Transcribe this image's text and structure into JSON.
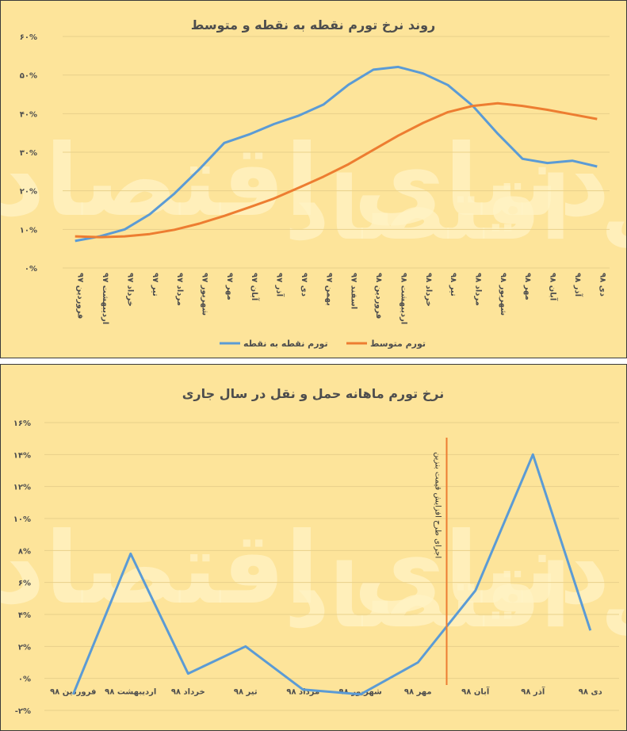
{
  "colors": {
    "spot": "#5b9bd5",
    "average": "#ed7d31",
    "transport": "#5b9bd5",
    "marker": "#ed7d31",
    "watermark": "#fff3c4"
  },
  "watermark": "دنیای اقتصاد",
  "chart_data": [
    {
      "type": "line",
      "title": "روند نرخ تورم نقطه به نقطه و متوسط",
      "categories": [
        "فروردین ۹۷",
        "اردیبهشت ۹۷",
        "خرداد ۹۷",
        "تیر ۹۷",
        "مرداد ۹۷",
        "شهریور ۹۷",
        "مهر ۹۷",
        "آبان ۹۷",
        "آذر ۹۷",
        "دی ۹۷",
        "بهمن ۹۷",
        "اسفند ۹۷",
        "فروردین ۹۸",
        "اردیبهشت ۹۸",
        "خرداد ۹۸",
        "تیر ۹۸",
        "مرداد ۹۸",
        "شهریور ۹۸",
        "مهر ۹۸",
        "آبان ۹۸",
        "آذر ۹۸",
        "دی ۹۸"
      ],
      "ylim": [
        0,
        60
      ],
      "yticks": [
        "۰%",
        "۱۰%",
        "۲۰%",
        "۳۰%",
        "۴۰%",
        "۵۰%",
        "۶۰%"
      ],
      "series": [
        {
          "name": "تورم نقطه به نقطه",
          "values": [
            7.0,
            8.2,
            10.0,
            13.9,
            19.3,
            25.6,
            32.4,
            34.6,
            37.3,
            39.5,
            42.4,
            47.5,
            51.4,
            52.1,
            50.4,
            47.4,
            42.0,
            34.8,
            28.3,
            27.2,
            27.8,
            26.3
          ]
        },
        {
          "name": "تورم متوسط",
          "values": [
            8.2,
            8.0,
            8.2,
            8.8,
            9.9,
            11.5,
            13.5,
            15.7,
            18.0,
            20.8,
            23.7,
            26.9,
            30.6,
            34.3,
            37.6,
            40.4,
            42.0,
            42.7,
            42.0,
            41.0,
            39.8,
            38.6
          ]
        }
      ]
    },
    {
      "type": "line",
      "title": "نرخ تورم ماهانه حمل و نقل  در سال جاری",
      "categories": [
        "فروردین ۹۸",
        "اردیبهشت ۹۸",
        "خرداد ۹۸",
        "تیر ۹۸",
        "مرداد ۹۸",
        "شهریور ۹۸",
        "مهر ۹۸",
        "آبان ۹۸",
        "آذر ۹۸",
        "دی ۹۸"
      ],
      "ylim": [
        -2,
        16
      ],
      "yticks": [
        "-۲%",
        "۰%",
        "۲%",
        "۴%",
        "۶%",
        "۸%",
        "۱۰%",
        "۱۲%",
        "۱۴%",
        "۱۶%"
      ],
      "values": [
        -1.0,
        7.8,
        0.3,
        2.0,
        -0.7,
        -1.0,
        1.0,
        5.5,
        14.0,
        3.0
      ],
      "annotation": "اجرای طرح افزایش قیمت بنزین"
    }
  ]
}
